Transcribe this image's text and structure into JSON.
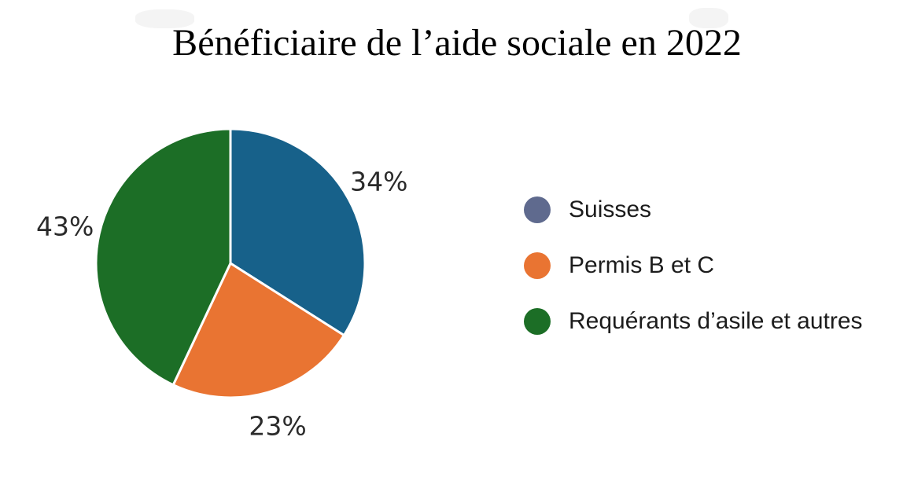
{
  "title": "Bénéficiaire de l’aide sociale en 2022",
  "chart_data": {
    "type": "pie",
    "title": "Bénéficiaire de l’aide sociale en 2022",
    "unit": "%",
    "direction": "clockwise",
    "start_angle_deg": 0,
    "legend_position": "right",
    "categories": [
      "Suisses",
      "Permis B et C",
      "Requérants d’asile et autres"
    ],
    "values": [
      34,
      23,
      43
    ],
    "slices": [
      {
        "label": "Suisses",
        "value": 34,
        "display": "34%",
        "wedge_color": "#17618a",
        "legend_color": "#5f6a8e"
      },
      {
        "label": "Permis B et C",
        "value": 23,
        "display": "23%",
        "wedge_color": "#e97432",
        "legend_color": "#e97432"
      },
      {
        "label": "Requérants d’asile et autres",
        "value": 43,
        "display": "43%",
        "wedge_color": "#1c6e26",
        "legend_color": "#1c6e26"
      }
    ],
    "colors": {
      "title_text": "#000000",
      "label_text": "#2b2b2b",
      "legend_text": "#1c1c1c",
      "wedge_border": "#ffffff"
    }
  }
}
